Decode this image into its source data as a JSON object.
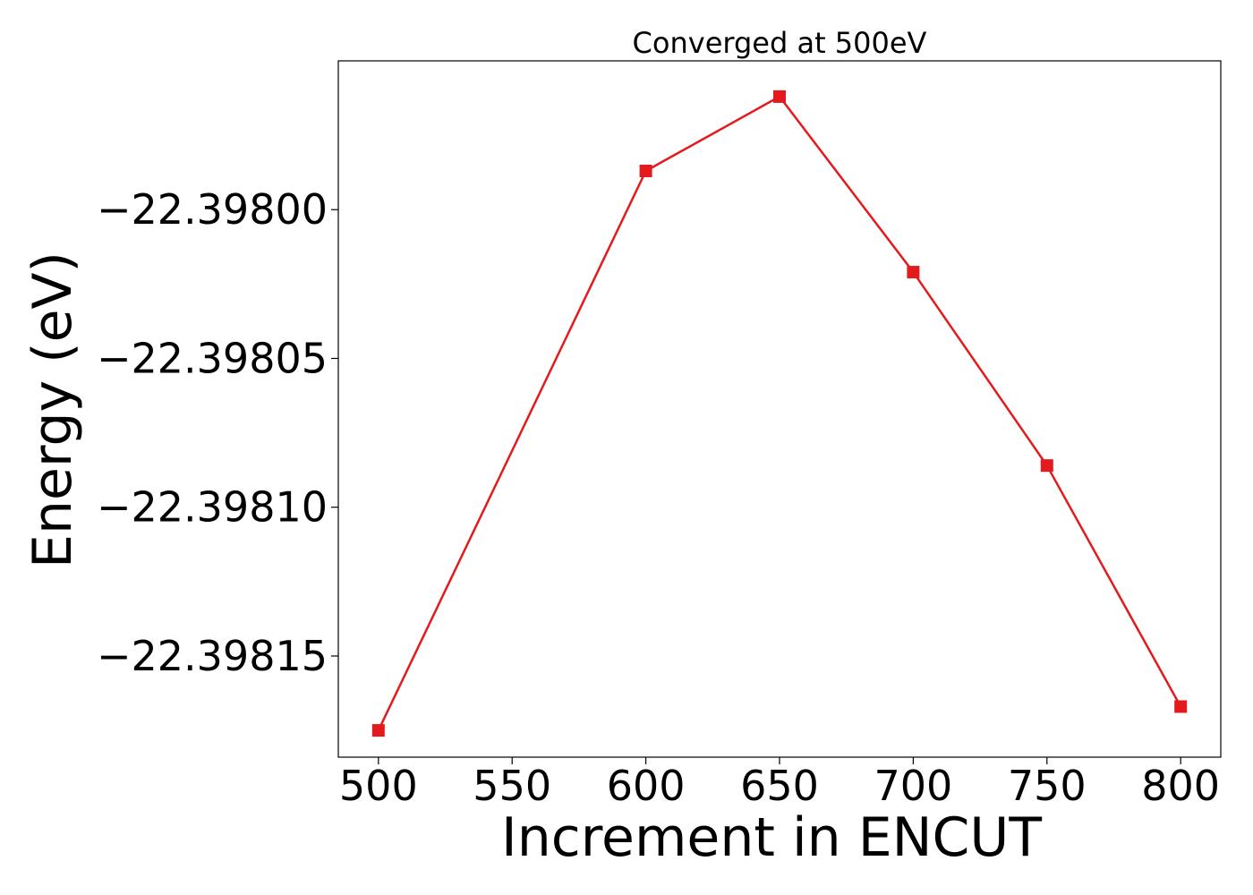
{
  "chart_data": {
    "type": "line",
    "title": "Converged at 500eV",
    "xlabel": "Increment in ENCUT",
    "ylabel": "Energy (eV)",
    "x": [
      500,
      600,
      650,
      700,
      750,
      800
    ],
    "series": [
      {
        "values": [
          -22.398175,
          -22.397987,
          -22.397962,
          -22.398021,
          -22.398086,
          -22.398167
        ],
        "color": "#e41a1c",
        "marker": "square"
      }
    ],
    "xlim": [
      485,
      815
    ],
    "ylim": [
      -22.398184,
      -22.39795
    ],
    "xticks": [
      500,
      550,
      600,
      650,
      700,
      750,
      800
    ],
    "xtick_labels": [
      "500",
      "550",
      "600",
      "650",
      "700",
      "750",
      "800"
    ],
    "yticks": [
      -22.398,
      -22.39805,
      -22.3981,
      -22.39815
    ],
    "ytick_labels": [
      "−22.39800",
      "−22.39805",
      "−22.39810",
      "−22.39815"
    ],
    "grid": false,
    "legend": "none"
  }
}
